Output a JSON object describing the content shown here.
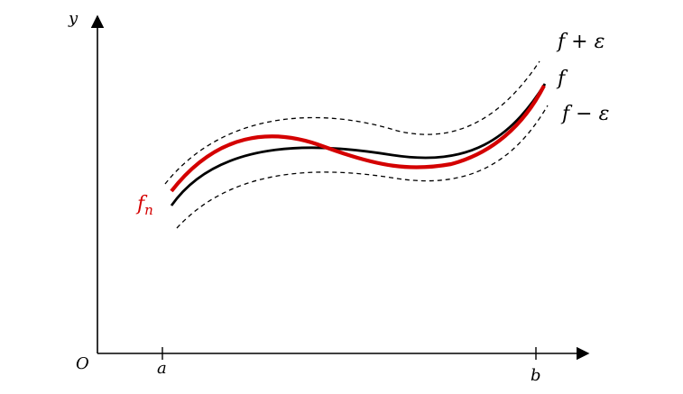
{
  "axes": {
    "y_label": "y",
    "origin_label": "O",
    "a_label": "a",
    "b_label": "b"
  },
  "curves": {
    "upper_label": "f + ε",
    "f_label": "f",
    "lower_label": "f − ε",
    "fn_label": "f",
    "fn_subscript": "n"
  },
  "colors": {
    "axis": "#000000",
    "f": "#000000",
    "bounds": "#000000",
    "fn": "#d40000"
  }
}
